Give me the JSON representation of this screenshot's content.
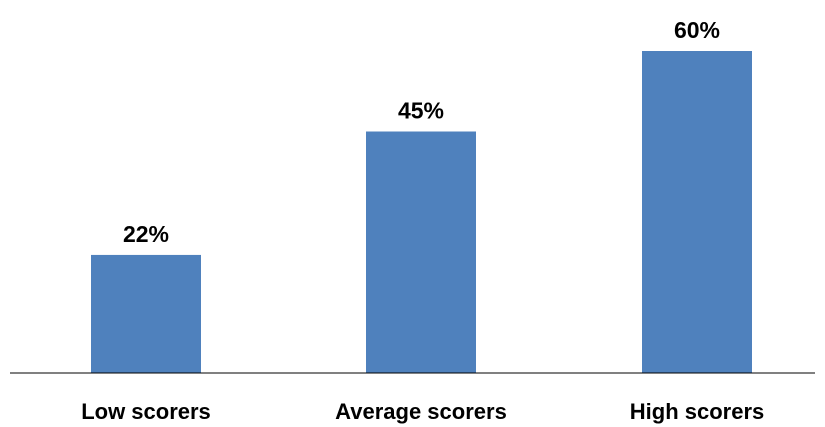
{
  "chart_data": {
    "type": "bar",
    "categories": [
      "Low scorers",
      "Average scorers",
      "High scorers"
    ],
    "values": [
      22,
      45,
      60
    ],
    "value_labels": [
      "22%",
      "45%",
      "60%"
    ],
    "title": "",
    "xlabel": "",
    "ylabel": "",
    "ylim": [
      0,
      60
    ],
    "grid": false,
    "legend": "none",
    "bar_color": "#4f81bd",
    "axis_color": "#000000"
  }
}
